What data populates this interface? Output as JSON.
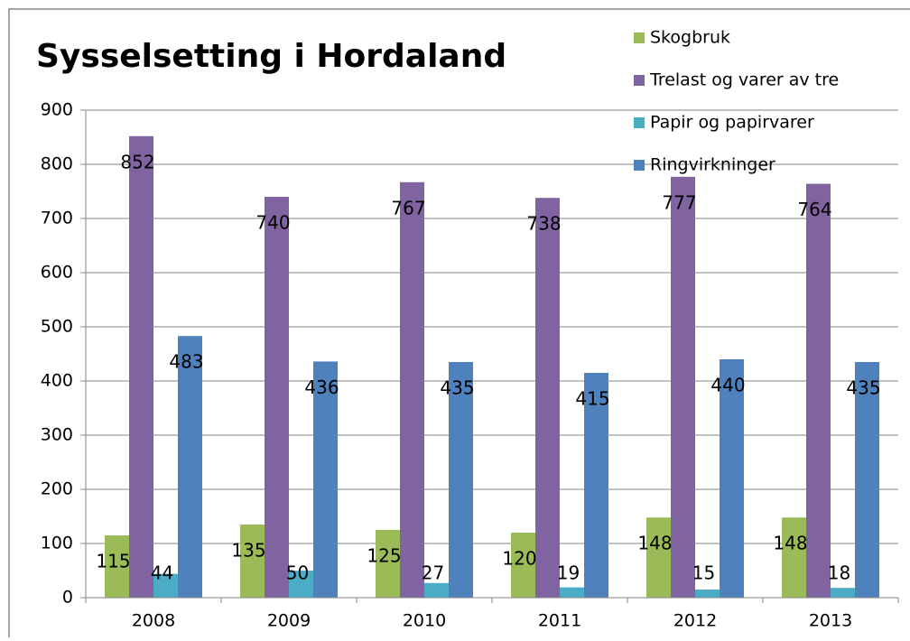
{
  "chart_data": {
    "type": "bar",
    "title": "Sysselsetting i Hordaland",
    "categories": [
      "2008",
      "2009",
      "2010",
      "2011",
      "2012",
      "2013"
    ],
    "series": [
      {
        "name": "Skogbruk",
        "color": "#9bbb59",
        "values": [
          115,
          135,
          125,
          120,
          148,
          148
        ]
      },
      {
        "name": "Trelast og varer av tre",
        "color": "#8064a2",
        "values": [
          852,
          740,
          767,
          738,
          777,
          764
        ]
      },
      {
        "name": "Papir og papirvarer",
        "color": "#4bacc6",
        "values": [
          44,
          50,
          27,
          19,
          15,
          18
        ]
      },
      {
        "name": "Ringvirkninger",
        "color": "#4f81bd",
        "values": [
          483,
          436,
          435,
          415,
          440,
          435
        ]
      }
    ],
    "ylim": [
      0,
      900
    ],
    "yticks": [
      0,
      100,
      200,
      300,
      400,
      500,
      600,
      700,
      800,
      900
    ],
    "grid": true,
    "legend": "top-right"
  }
}
